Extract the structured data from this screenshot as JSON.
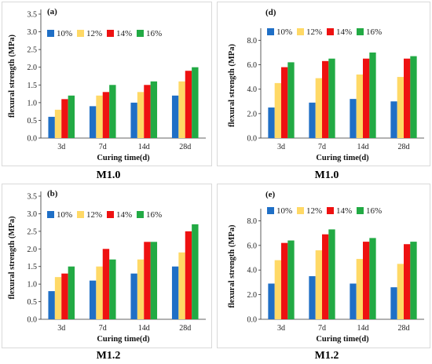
{
  "colors": {
    "s10": "#1f6fc6",
    "s12": "#ffd966",
    "s14": "#ee1111",
    "s16": "#22aa44"
  },
  "captions": [
    "M1.0",
    "M1.0",
    "M1.2",
    "M1.2"
  ],
  "chart_data": [
    {
      "type": "bar",
      "panel_label": "(a)",
      "categories": [
        "3d",
        "7d",
        "14d",
        "28d"
      ],
      "series": [
        {
          "name": "10%",
          "values": [
            0.6,
            0.9,
            1.0,
            1.2
          ]
        },
        {
          "name": "12%",
          "values": [
            0.8,
            1.2,
            1.3,
            1.6
          ]
        },
        {
          "name": "14%",
          "values": [
            1.1,
            1.3,
            1.5,
            1.9
          ]
        },
        {
          "name": "16%",
          "values": [
            1.2,
            1.5,
            1.6,
            2.0
          ]
        }
      ],
      "yticks": [
        "0.0",
        "0.5",
        "1.0",
        "1.5",
        "2.0",
        "2.5",
        "3.0",
        "3.5"
      ],
      "xlabel": "Curing  time(d)",
      "ylabel": "flexural strength (MPa)",
      "ylim": [
        0,
        3.5
      ],
      "legend": "top-left"
    },
    {
      "type": "bar",
      "panel_label": "(d)",
      "categories": [
        "3d",
        "7d",
        "14d",
        "28d"
      ],
      "series": [
        {
          "name": "10%",
          "values": [
            2.5,
            2.9,
            3.2,
            3.0
          ]
        },
        {
          "name": "12%",
          "values": [
            4.5,
            4.9,
            5.2,
            5.0
          ]
        },
        {
          "name": "14%",
          "values": [
            5.8,
            6.3,
            6.5,
            6.5
          ]
        },
        {
          "name": "16%",
          "values": [
            6.2,
            6.5,
            7.0,
            6.7
          ]
        }
      ],
      "yticks": [
        "0.0",
        "2.0",
        "4.0",
        "6.0",
        "8.0"
      ],
      "xlabel": "Curing  time(d)",
      "ylabel": "flexural strength (MPa)",
      "ylim": [
        0,
        8.6
      ],
      "legend": "top-left"
    },
    {
      "type": "bar",
      "panel_label": "(b)",
      "categories": [
        "3d",
        "7d",
        "14d",
        "28d"
      ],
      "series": [
        {
          "name": "10%",
          "values": [
            0.8,
            1.1,
            1.3,
            1.5
          ]
        },
        {
          "name": "12%",
          "values": [
            1.2,
            1.5,
            1.7,
            1.9
          ]
        },
        {
          "name": "14%",
          "values": [
            1.3,
            2.0,
            2.2,
            2.5
          ]
        },
        {
          "name": "16%",
          "values": [
            1.5,
            1.7,
            2.2,
            2.7
          ]
        }
      ],
      "yticks": [
        "0.0",
        "0.5",
        "1.0",
        "1.5",
        "2.0",
        "2.5",
        "3.0",
        "3.5"
      ],
      "xlabel": "Curing  time(d)",
      "ylabel": "flexural strength (MPa)",
      "ylim": [
        0,
        3.5
      ],
      "legend": "top-left"
    },
    {
      "type": "bar",
      "panel_label": "(e)",
      "categories": [
        "3d",
        "7d",
        "14d",
        "28d"
      ],
      "series": [
        {
          "name": "10%",
          "values": [
            2.9,
            3.5,
            2.9,
            2.6
          ]
        },
        {
          "name": "12%",
          "values": [
            4.8,
            5.6,
            4.9,
            4.5
          ]
        },
        {
          "name": "14%",
          "values": [
            6.2,
            6.9,
            6.3,
            6.1
          ]
        },
        {
          "name": "16%",
          "values": [
            6.4,
            7.3,
            6.6,
            6.3
          ]
        }
      ],
      "yticks": [
        "0.0",
        "2.0",
        "4.0",
        "6.0",
        "8.0"
      ],
      "xlabel": "Curing  time(d)",
      "ylabel": "flexural strength (MPa)",
      "ylim": [
        0,
        8.6
      ],
      "legend": "top-left"
    }
  ]
}
